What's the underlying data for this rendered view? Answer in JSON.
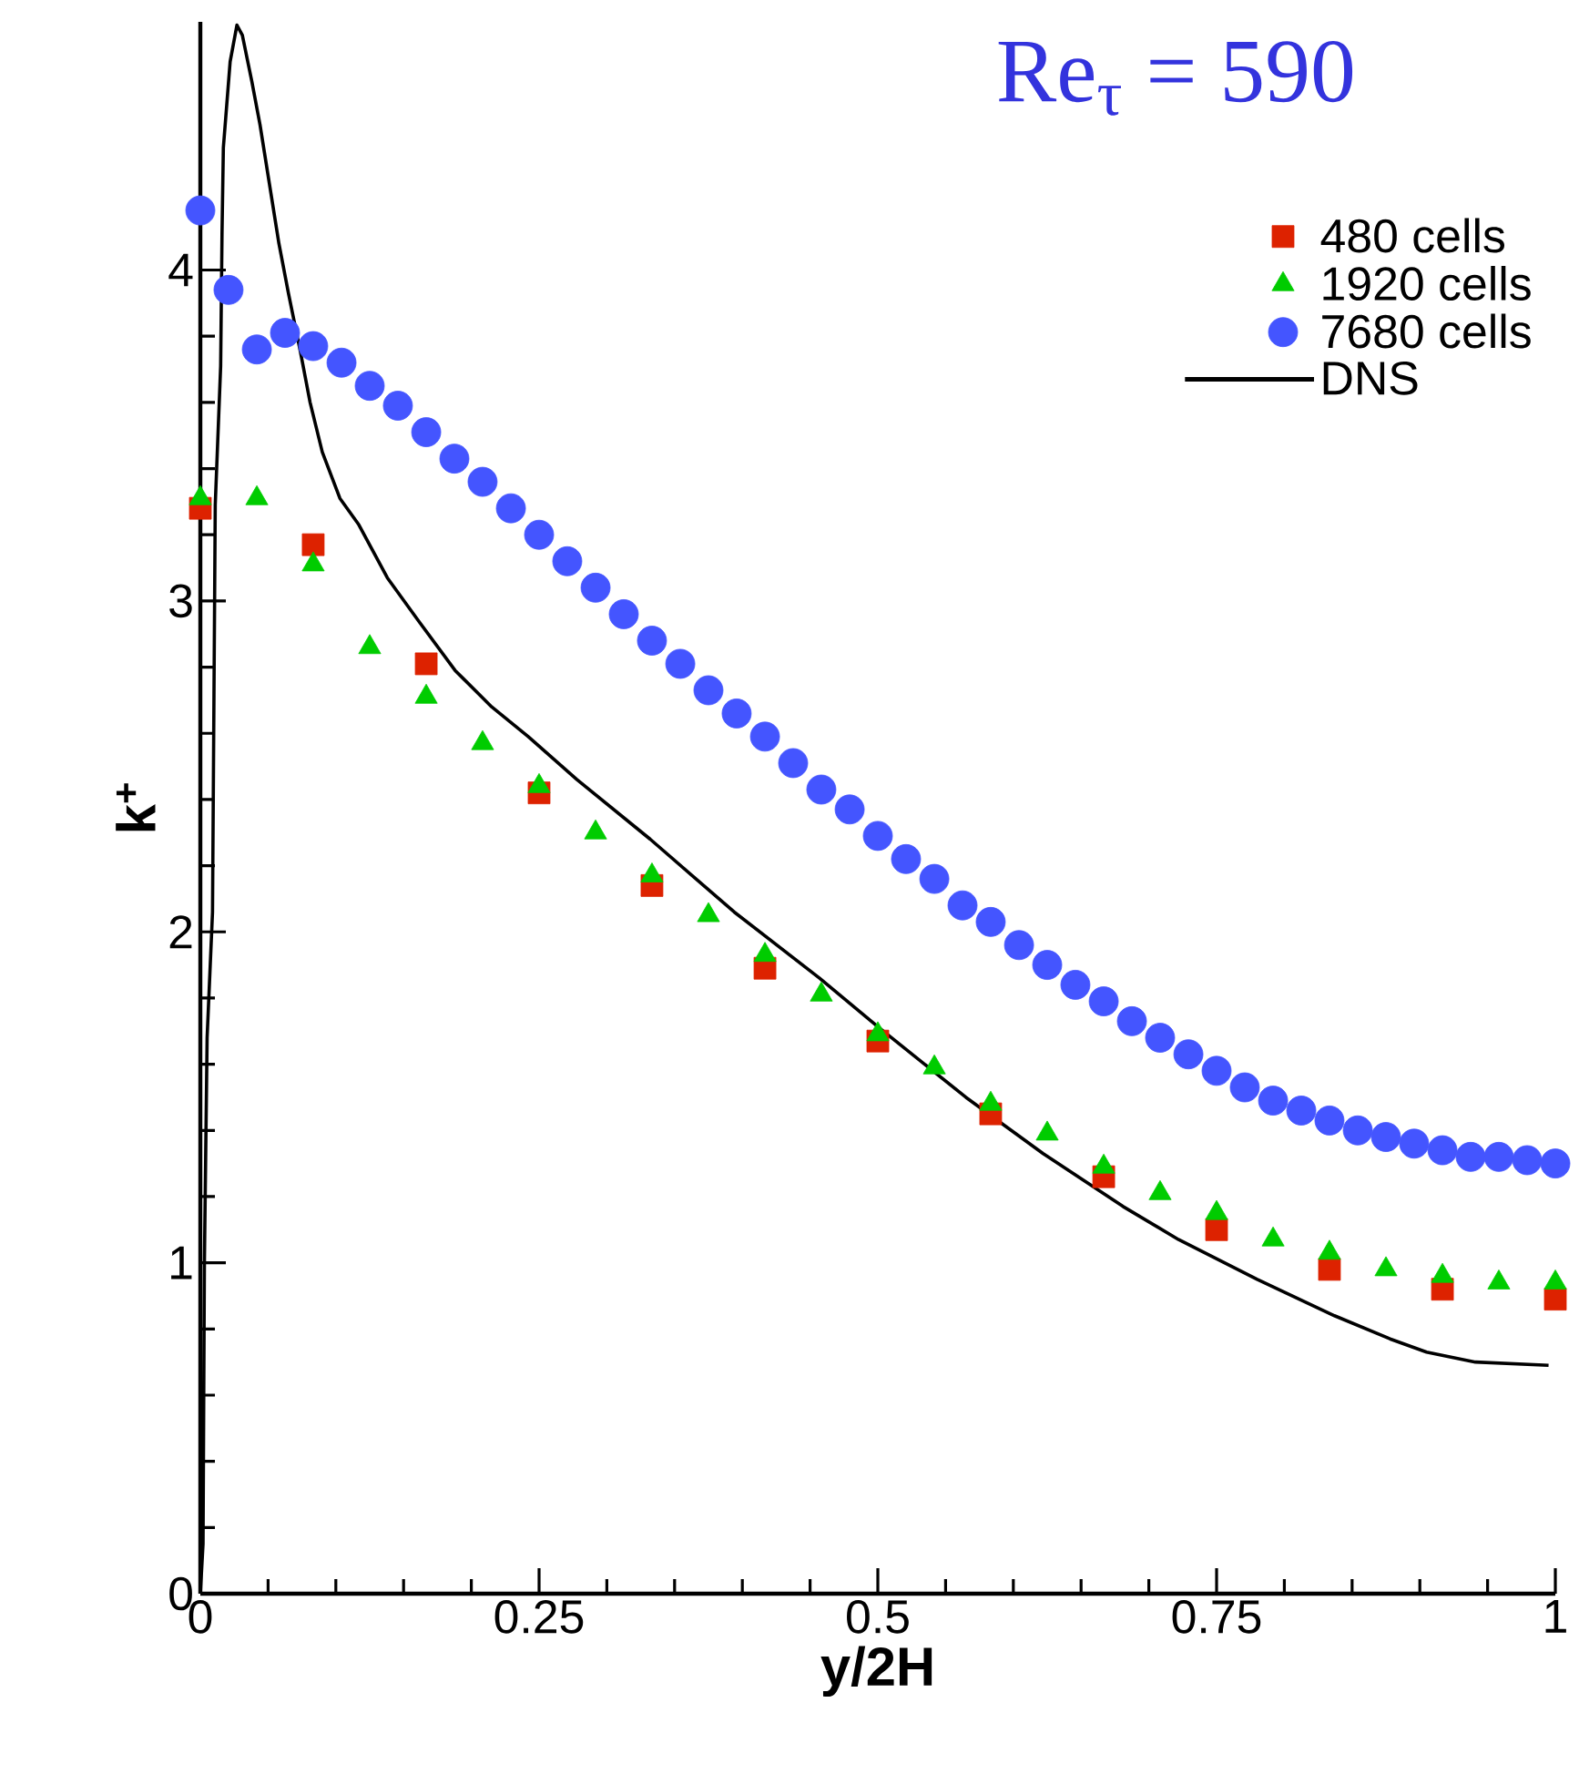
{
  "chart_data": {
    "type": "scatter",
    "title": "Re$_{τ}$ = 590",
    "xlabel": "y/2H",
    "ylabel": "k$^{+}$",
    "xlim": [
      0,
      1
    ],
    "ylim": [
      0,
      4.75
    ],
    "xticks": [
      0,
      0.25,
      0.5,
      0.75,
      1
    ],
    "yticks": [
      0,
      1,
      2,
      3,
      4
    ],
    "legend": "top right",
    "series": [
      {
        "name": "480 cells",
        "marker": "square",
        "color": "#dd2200",
        "x": [
          0,
          0.0833,
          0.1667,
          0.25,
          0.3333,
          0.4167,
          0.5,
          0.5833,
          0.6667,
          0.75,
          0.8333,
          0.9167,
          1
        ],
        "values": [
          3.28,
          3.17,
          2.81,
          2.42,
          2.14,
          1.89,
          1.67,
          1.45,
          1.26,
          1.1,
          0.98,
          0.92,
          0.89
        ]
      },
      {
        "name": "1920 cells",
        "marker": "triangle",
        "color": "#00cc00",
        "x": [
          0,
          0.0417,
          0.0833,
          0.125,
          0.1667,
          0.2083,
          0.25,
          0.2917,
          0.3333,
          0.375,
          0.4167,
          0.4583,
          0.5,
          0.5417,
          0.5833,
          0.625,
          0.6667,
          0.7083,
          0.75,
          0.7917,
          0.8333,
          0.875,
          0.9167,
          0.9583,
          1
        ],
        "values": [
          3.31,
          3.31,
          3.11,
          2.86,
          2.71,
          2.57,
          2.44,
          2.3,
          2.17,
          2.05,
          1.93,
          1.81,
          1.69,
          1.59,
          1.48,
          1.39,
          1.29,
          1.21,
          1.15,
          1.07,
          1.03,
          0.98,
          0.96,
          0.94,
          0.94
        ]
      },
      {
        "name": "7680 cells",
        "marker": "circle",
        "color": "#4455ff",
        "x": [
          0,
          0.0208,
          0.0417,
          0.0625,
          0.0833,
          0.1042,
          0.125,
          0.1458,
          0.1667,
          0.1875,
          0.2083,
          0.2292,
          0.25,
          0.2708,
          0.2917,
          0.3125,
          0.3333,
          0.3542,
          0.375,
          0.3958,
          0.4167,
          0.4375,
          0.4583,
          0.4792,
          0.5,
          0.5208,
          0.5417,
          0.5625,
          0.5833,
          0.6042,
          0.625,
          0.6458,
          0.6667,
          0.6875,
          0.7083,
          0.7292,
          0.75,
          0.7708,
          0.7917,
          0.8125,
          0.8333,
          0.8542,
          0.875,
          0.8958,
          0.9167,
          0.9375,
          0.9583,
          0.9792,
          1
        ],
        "values": [
          4.18,
          3.94,
          3.76,
          3.81,
          3.77,
          3.72,
          3.65,
          3.59,
          3.51,
          3.43,
          3.36,
          3.28,
          3.2,
          3.12,
          3.04,
          2.96,
          2.88,
          2.81,
          2.73,
          2.66,
          2.59,
          2.51,
          2.43,
          2.37,
          2.29,
          2.22,
          2.16,
          2.08,
          2.03,
          1.96,
          1.9,
          1.84,
          1.79,
          1.73,
          1.68,
          1.63,
          1.58,
          1.53,
          1.49,
          1.46,
          1.43,
          1.4,
          1.38,
          1.36,
          1.34,
          1.32,
          1.32,
          1.31,
          1.3
        ]
      },
      {
        "name": "DNS",
        "type": "line",
        "marker": "none",
        "line_style": "solid",
        "color": "#000000",
        "x": [
          0,
          0.002,
          0.003,
          0.005,
          0.009,
          0.011,
          0.015,
          0.016,
          0.017,
          0.022,
          0.027,
          0.031,
          0.038,
          0.044,
          0.051,
          0.058,
          0.065,
          0.074,
          0.081,
          0.09,
          0.103,
          0.117,
          0.138,
          0.161,
          0.188,
          0.215,
          0.242,
          0.278,
          0.332,
          0.394,
          0.457,
          0.501,
          0.565,
          0.622,
          0.681,
          0.722,
          0.78,
          0.837,
          0.878,
          0.905,
          0.941,
          0.995
        ],
        "values": [
          0,
          0.15,
          1.0,
          1.68,
          2.06,
          3.29,
          3.71,
          4.11,
          4.37,
          4.63,
          4.74,
          4.71,
          4.57,
          4.44,
          4.26,
          4.08,
          3.93,
          3.75,
          3.6,
          3.45,
          3.31,
          3.23,
          3.07,
          2.94,
          2.79,
          2.68,
          2.59,
          2.46,
          2.28,
          2.06,
          1.86,
          1.71,
          1.5,
          1.33,
          1.17,
          1.07,
          0.95,
          0.84,
          0.77,
          0.73,
          0.7,
          0.69
        ]
      }
    ]
  }
}
